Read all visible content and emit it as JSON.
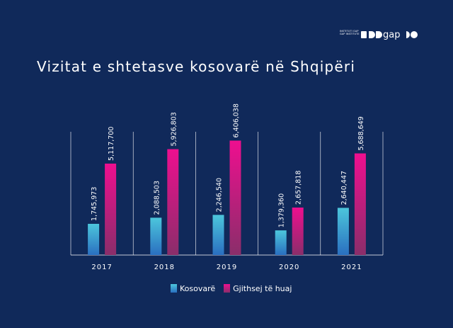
{
  "brand": {
    "subtitle_lines": [
      "INSTITUTI GAP",
      "GAP INSTITUTE"
    ],
    "logo_text": "gap"
  },
  "title": "Vizitat e shtetasve kosovarë në Shqipëri",
  "chart_data": {
    "type": "bar",
    "title": "Vizitat e shtetasve kosovarë në Shqipëri",
    "xlabel": "",
    "ylabel": "",
    "categories": [
      "2017",
      "2018",
      "2019",
      "2020",
      "2021"
    ],
    "series": [
      {
        "name": "Kosovarë",
        "values": [
          1745973,
          2088503,
          2246540,
          1379360,
          2640447
        ],
        "labels": [
          "1,745,973",
          "2,088,503",
          "2,246,540",
          "1,379,360",
          "2,640,447"
        ],
        "color_top": "#4cc6dc",
        "color_bottom": "#2a6fc0"
      },
      {
        "name": "Gjithsej të huaj",
        "values": [
          5117700,
          5926803,
          6406038,
          2657818,
          5688649
        ],
        "labels": [
          "5,117,700",
          "5,926,803",
          "6,406,038",
          "2,657,818",
          "5,688,649"
        ],
        "color_top": "#ee0f8f",
        "color_bottom": "#8a2e6a"
      }
    ],
    "ylim": [
      0,
      6900000
    ],
    "grid": false,
    "legend_position": "bottom"
  }
}
